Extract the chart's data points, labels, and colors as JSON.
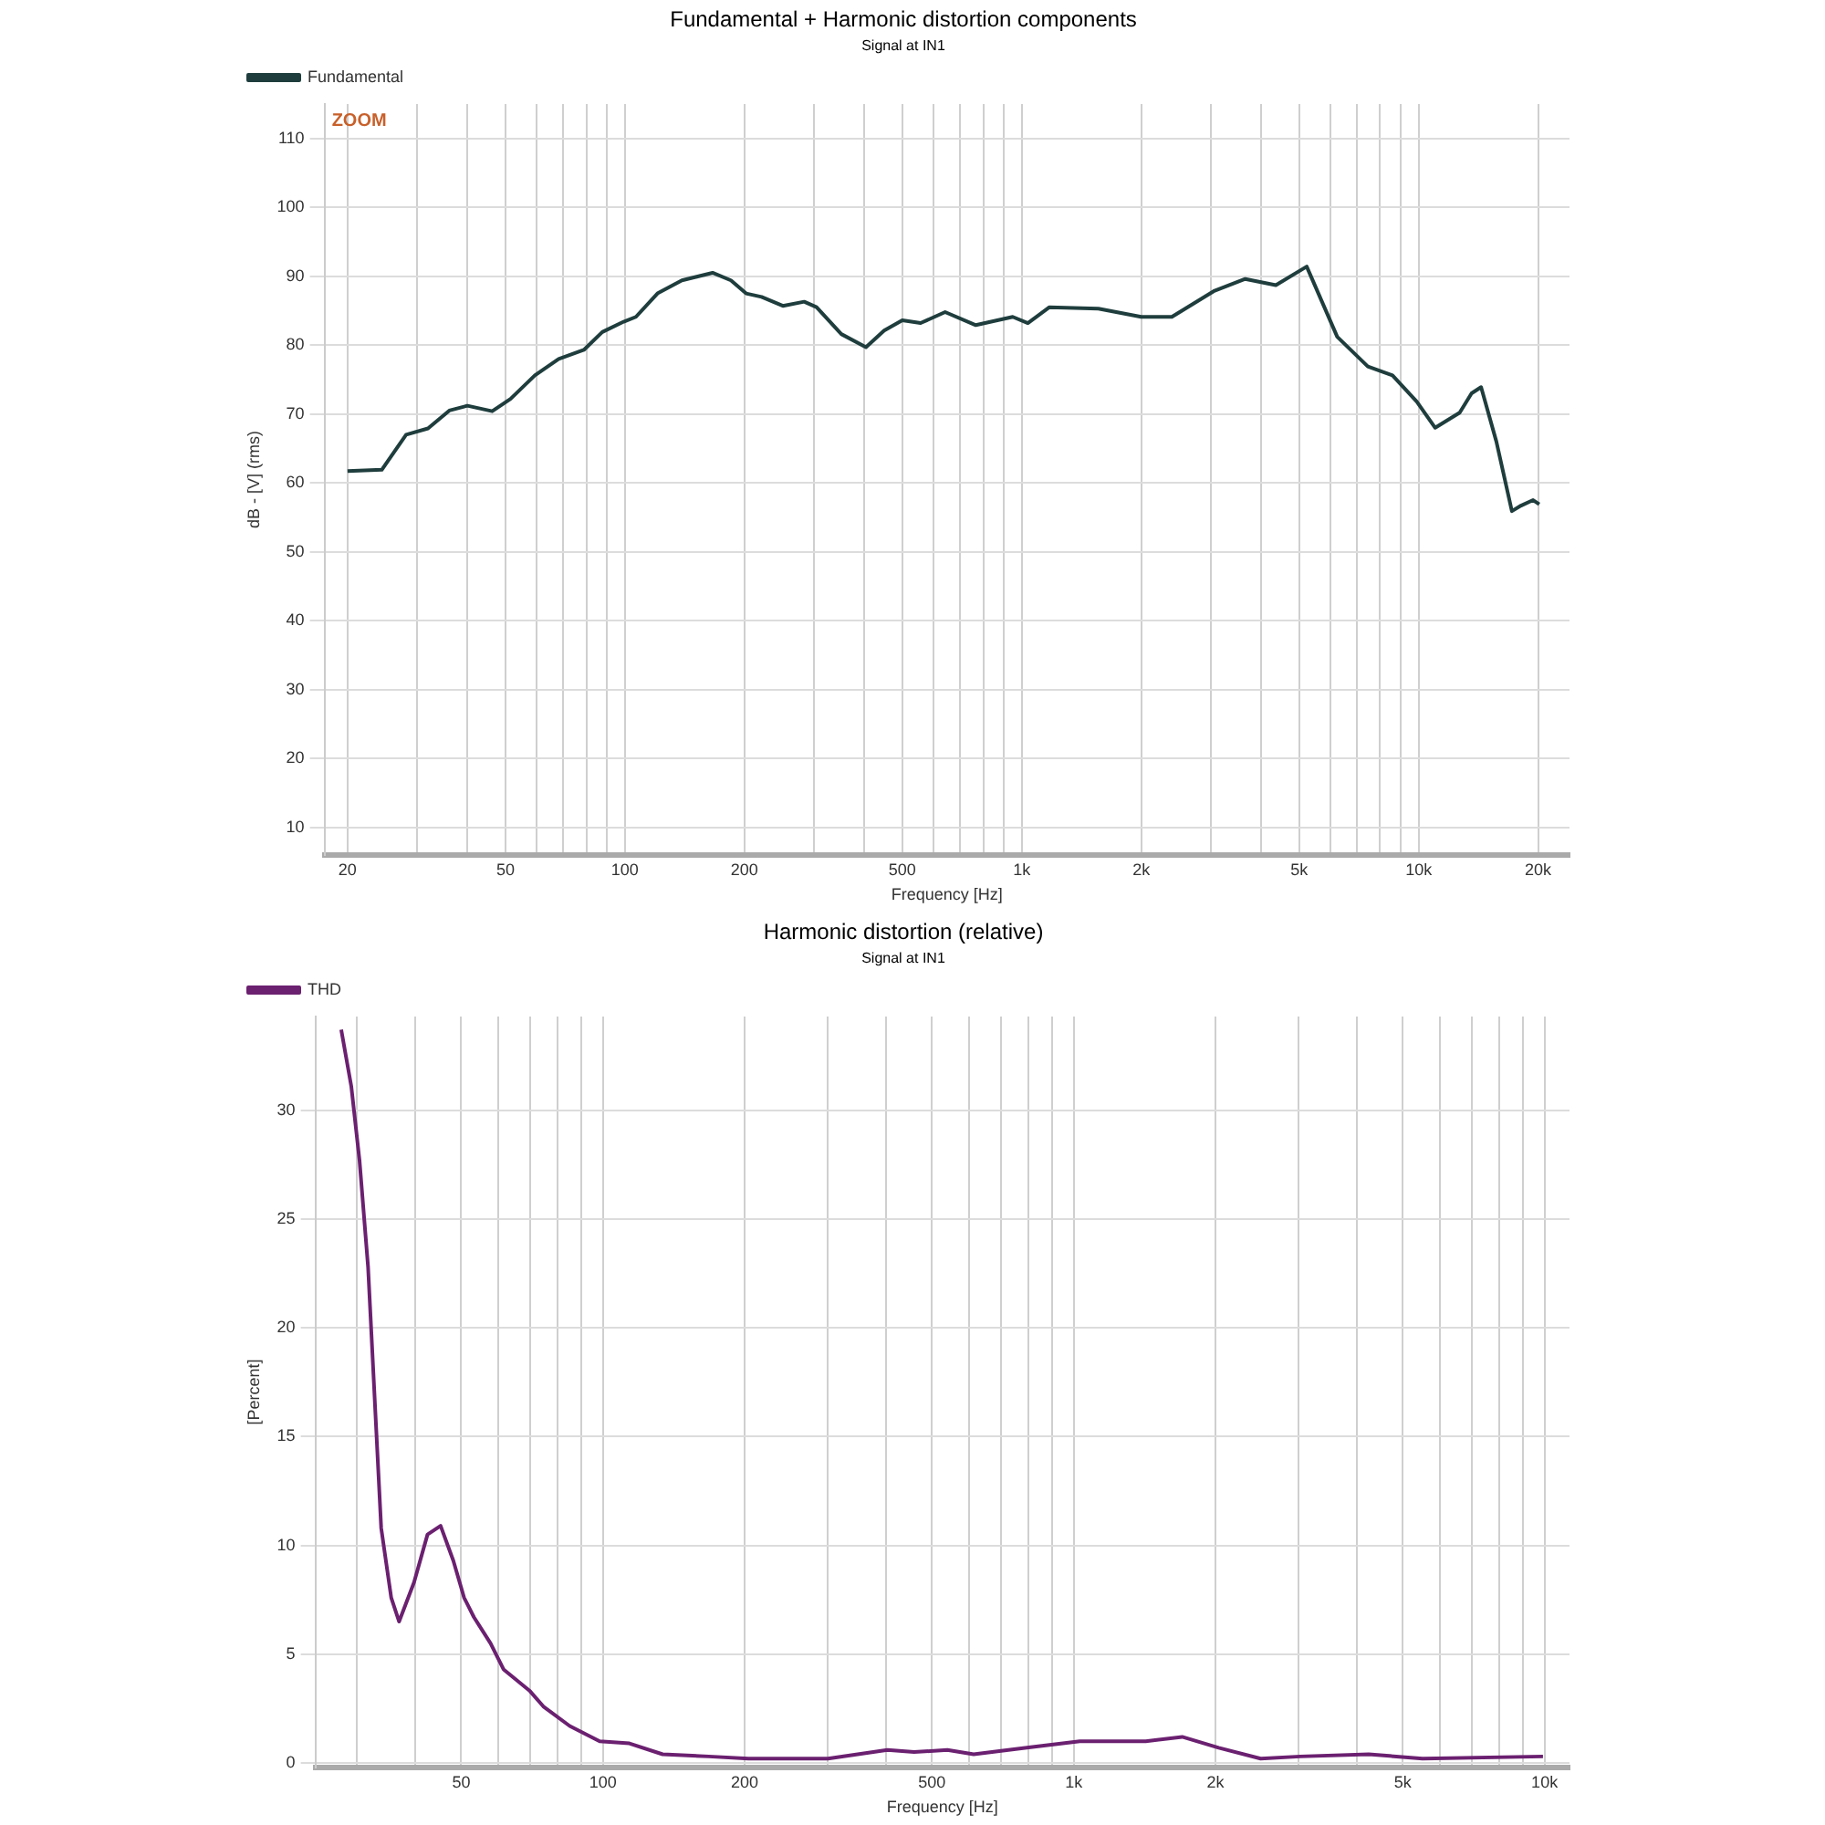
{
  "chart_data": [
    {
      "type": "line",
      "title": "Fundamental + Harmonic distortion components",
      "subtitle": "Signal at IN1",
      "xlabel": "Frequency [Hz]",
      "ylabel": "dB - [V] (rms)",
      "annotations": [
        "ZOOM"
      ],
      "log": "x",
      "grid": true,
      "legend": "top left",
      "marker": "none",
      "line_style": "solid",
      "xlim": [
        17.5,
        24000
      ],
      "ylim": [
        6,
        115
      ],
      "xticks": [
        {
          "value": 20,
          "label": "20"
        },
        {
          "value": 30,
          "label": null
        },
        {
          "value": 40,
          "label": null
        },
        {
          "value": 50,
          "label": "50"
        },
        {
          "value": 60,
          "label": null
        },
        {
          "value": 70,
          "label": null
        },
        {
          "value": 80,
          "label": null
        },
        {
          "value": 90,
          "label": null
        },
        {
          "value": 100,
          "label": "100"
        },
        {
          "value": 200,
          "label": "200"
        },
        {
          "value": 300,
          "label": null
        },
        {
          "value": 400,
          "label": null
        },
        {
          "value": 500,
          "label": "500"
        },
        {
          "value": 600,
          "label": null
        },
        {
          "value": 700,
          "label": null
        },
        {
          "value": 800,
          "label": null
        },
        {
          "value": 900,
          "label": null
        },
        {
          "value": 1000,
          "label": "1k"
        },
        {
          "value": 2000,
          "label": "2k"
        },
        {
          "value": 3000,
          "label": null
        },
        {
          "value": 4000,
          "label": null
        },
        {
          "value": 5000,
          "label": "5k"
        },
        {
          "value": 6000,
          "label": null
        },
        {
          "value": 7000,
          "label": null
        },
        {
          "value": 8000,
          "label": null
        },
        {
          "value": 9000,
          "label": null
        },
        {
          "value": 10000,
          "label": "10k"
        },
        {
          "value": 20000,
          "label": "20k"
        }
      ],
      "yticks": [
        10,
        20,
        30,
        40,
        50,
        60,
        70,
        80,
        90,
        100,
        110
      ],
      "series": [
        {
          "name": "Fundamental",
          "color": "#1f3d3d",
          "x": [
            20,
            24.4,
            28.1,
            31.9,
            36.1,
            40.1,
            46.3,
            51.5,
            59.3,
            68.1,
            78.8,
            87.7,
            99.3,
            106.6,
            120.8,
            139.2,
            166.3,
            185,
            202,
            221,
            250,
            283,
            304,
            351,
            405,
            450,
            500,
            556,
            641,
            766,
            949,
            1036,
            1174,
            1560,
            2000,
            2389,
            3063,
            3657,
            4368,
            5224,
            6237,
            7448,
            8594,
            9893,
            11010,
            12690,
            13600,
            14370,
            15700,
            17180,
            18120,
            19430,
            20140
          ],
          "values": [
            61.7,
            61.9,
            67,
            67.9,
            70.5,
            71.2,
            70.4,
            72.2,
            75.6,
            78,
            79.3,
            81.9,
            83.4,
            84.1,
            87.5,
            89.4,
            90.5,
            89.4,
            87.5,
            87,
            85.7,
            86.3,
            85.5,
            81.6,
            79.7,
            82.1,
            83.6,
            83.2,
            84.8,
            82.9,
            84.1,
            83.2,
            85.5,
            85.3,
            84.1,
            84.1,
            87.9,
            89.6,
            88.7,
            91.4,
            81.2,
            76.9,
            75.6,
            71.8,
            68,
            70.2,
            73,
            73.9,
            66,
            55.9,
            56.7,
            57.5,
            56.9
          ]
        }
      ]
    },
    {
      "type": "line",
      "title": "Harmonic distortion (relative)",
      "subtitle": "Signal at IN1",
      "xlabel": "Frequency [Hz]",
      "ylabel": "[Percent]",
      "log": "x",
      "grid": true,
      "legend": "top left",
      "marker": "none",
      "line_style": "solid",
      "xlim": [
        24.5,
        11300
      ],
      "ylim": [
        -0.2,
        34.3
      ],
      "xticks": [
        {
          "value": 30,
          "label": null
        },
        {
          "value": 40,
          "label": null
        },
        {
          "value": 50,
          "label": "50"
        },
        {
          "value": 60,
          "label": null
        },
        {
          "value": 70,
          "label": null
        },
        {
          "value": 80,
          "label": null
        },
        {
          "value": 90,
          "label": null
        },
        {
          "value": 100,
          "label": "100"
        },
        {
          "value": 200,
          "label": "200"
        },
        {
          "value": 300,
          "label": null
        },
        {
          "value": 400,
          "label": null
        },
        {
          "value": 500,
          "label": "500"
        },
        {
          "value": 600,
          "label": null
        },
        {
          "value": 700,
          "label": null
        },
        {
          "value": 800,
          "label": null
        },
        {
          "value": 900,
          "label": null
        },
        {
          "value": 1000,
          "label": "1k"
        },
        {
          "value": 2000,
          "label": "2k"
        },
        {
          "value": 3000,
          "label": null
        },
        {
          "value": 4000,
          "label": null
        },
        {
          "value": 5000,
          "label": "5k"
        },
        {
          "value": 6000,
          "label": null
        },
        {
          "value": 7000,
          "label": null
        },
        {
          "value": 8000,
          "label": null
        },
        {
          "value": 9000,
          "label": null
        },
        {
          "value": 10000,
          "label": "10k"
        }
      ],
      "yticks": [
        0,
        5,
        10,
        15,
        20,
        25,
        30
      ],
      "series": [
        {
          "name": "THD",
          "color": "#6b2070",
          "x": [
            27.8,
            29.2,
            30.4,
            31.7,
            33.8,
            35.5,
            36.9,
            39.7,
            42.4,
            45.2,
            48.1,
            50.7,
            53.2,
            57.7,
            61.5,
            70,
            74.7,
            85,
            98.4,
            113.8,
            133.9,
            167.8,
            203.8,
            300.5,
            402,
            458,
            539,
            613,
            795,
            1030,
            1422,
            1700,
            2032,
            2495,
            3029,
            4233,
            5508,
            9925
          ],
          "values": [
            33.7,
            31.1,
            27.7,
            22.8,
            10.8,
            7.6,
            6.5,
            8.3,
            10.5,
            10.9,
            9.3,
            7.6,
            6.7,
            5.5,
            4.3,
            3.3,
            2.6,
            1.7,
            1,
            0.9,
            0.4,
            0.3,
            0.2,
            0.2,
            0.6,
            0.5,
            0.6,
            0.4,
            0.7,
            1,
            1,
            1.2,
            0.7,
            0.2,
            0.3,
            0.4,
            0.2,
            0.3
          ]
        }
      ]
    }
  ]
}
